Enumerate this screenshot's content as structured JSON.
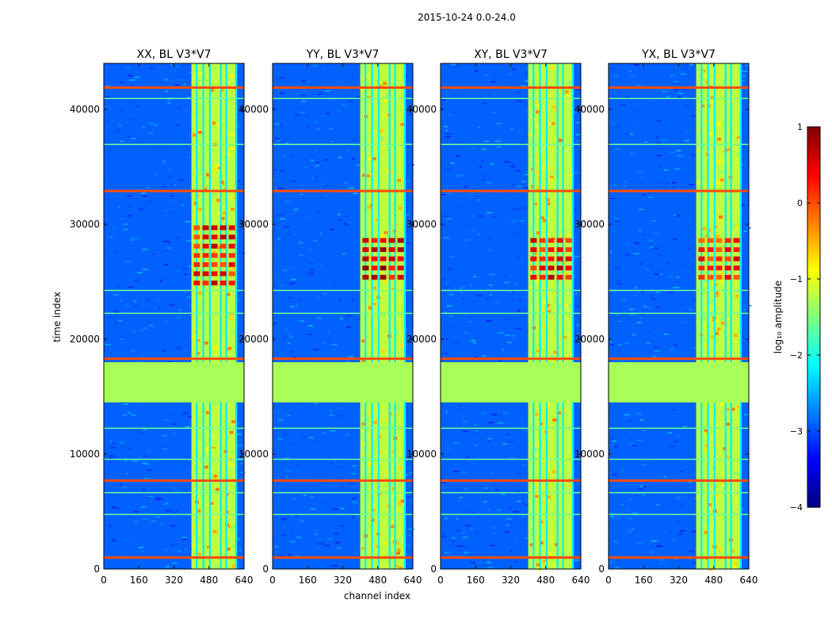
{
  "figure_title": "2015-10-24 0.0-24.0",
  "colorbar": {
    "label": "log₁₀ amplitude",
    "range": [
      -4,
      1
    ],
    "ticks": [
      {
        "value": 1,
        "label": "1"
      },
      {
        "value": 0,
        "label": "0"
      },
      {
        "value": -1,
        "label": "−1"
      },
      {
        "value": -2,
        "label": "−2"
      },
      {
        "value": -3,
        "label": "−3"
      },
      {
        "value": -4,
        "label": "−4"
      }
    ],
    "colormap": "jet"
  },
  "chart_data": {
    "type": "heatmap",
    "xlabel": "channel index",
    "ylabel": "time index",
    "xlim": [
      0,
      640
    ],
    "ylim": [
      0,
      44000
    ],
    "x_ticks": [
      0,
      160,
      320,
      480,
      640
    ],
    "y_ticks": [
      0,
      10000,
      20000,
      30000,
      40000
    ],
    "y_tick_labels": [
      "0",
      "10000",
      "20000",
      "30000",
      "40000"
    ],
    "panels": [
      {
        "title": "XX, BL V3*V7",
        "peak_band_time": [
          24500,
          30000
        ],
        "peak_level": 0.6
      },
      {
        "title": "YY, BL V3*V7",
        "peak_band_time": [
          25000,
          29000
        ],
        "peak_level": 0.8
      },
      {
        "title": "XY, BL V3*V7",
        "peak_band_time": [
          25000,
          29000
        ],
        "peak_level": 0.6
      },
      {
        "title": "YX, BL V3*V7",
        "peak_band_time": [
          25000,
          29000
        ],
        "peak_level": 0.5
      }
    ],
    "flagged_time_range": [
      14500,
      18000
    ],
    "flagged_level": -1.3,
    "background_level": -2.9,
    "bright_channel_range": [
      400,
      600
    ],
    "bright_level": -1.2,
    "bright_channel_stripes": [
      420,
      450,
      480,
      530,
      555,
      600
    ],
    "rfi_time_rows": [
      42000,
      41000,
      37000,
      33000,
      24300,
      22300,
      18400,
      12300,
      9600,
      7800,
      6700,
      4800,
      1100
    ]
  }
}
